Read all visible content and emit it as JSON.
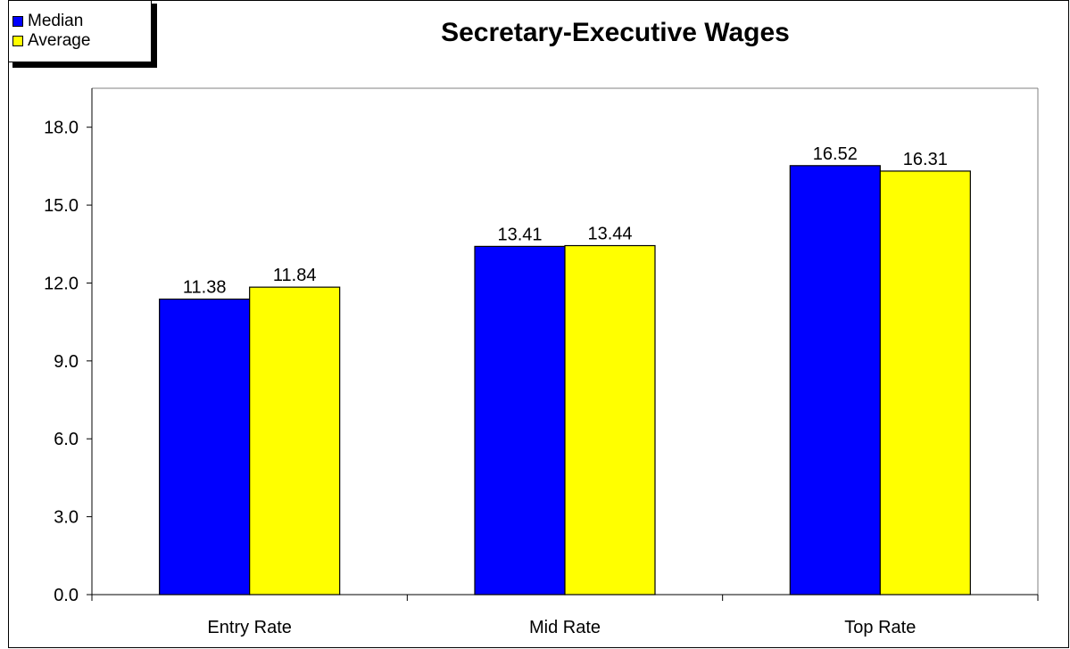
{
  "chart_data": {
    "type": "bar",
    "title": "Secretary-Executive Wages",
    "categories": [
      "Entry Rate",
      "Mid Rate",
      "Top Rate"
    ],
    "series": [
      {
        "name": "Median",
        "values": [
          11.38,
          13.41,
          16.52
        ],
        "color": "#0000FF"
      },
      {
        "name": "Average",
        "values": [
          11.84,
          13.44,
          16.31
        ],
        "color": "#FFFF00"
      }
    ],
    "ylim": [
      0,
      19.5
    ],
    "yticks": [
      "0.0",
      "3.0",
      "6.0",
      "9.0",
      "12.0",
      "15.0",
      "18.0"
    ],
    "ytick_values": [
      0,
      3,
      6,
      9,
      12,
      15,
      18
    ],
    "data_labels": [
      [
        "11.38",
        "13.41",
        "16.52"
      ],
      [
        "11.84",
        "13.44",
        "16.31"
      ]
    ],
    "legend_position": "top-left",
    "grid": false
  }
}
